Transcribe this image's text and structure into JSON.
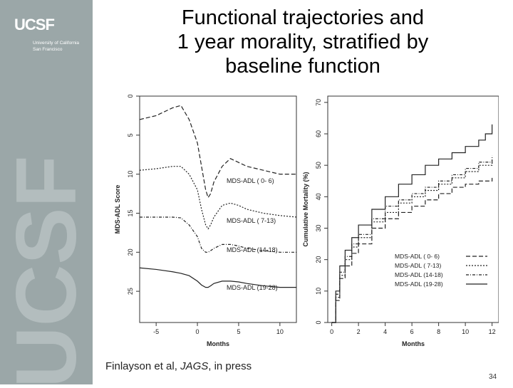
{
  "sidebar": {
    "logo": "UCSF",
    "subtitle_line1": "University of California",
    "subtitle_line2": "San Francisco",
    "watermark": "UCSF"
  },
  "slide": {
    "title_line1": "Functional trajectories and",
    "title_line2": "1 year morality, stratified by",
    "title_line3": "baseline function",
    "citation_prefix": "Finlayson et al, ",
    "citation_journal": "JAGS",
    "citation_suffix": ", in press",
    "page_number": "34"
  },
  "chart_data": [
    {
      "type": "line",
      "xlabel": "Months",
      "ylabel": "MDS-ADL Score",
      "xlim": [
        -7,
        12
      ],
      "ylim": [
        0,
        29
      ],
      "y_inverted": true,
      "x_ticks": [
        -5,
        0,
        5,
        10
      ],
      "y_ticks": [
        0,
        5,
        10,
        15,
        20,
        25
      ],
      "series": [
        {
          "name": "MDS-ADL ( 0- 6)",
          "dash": "6,3",
          "x": [
            -7,
            -5,
            -3,
            -2,
            -1,
            0,
            0.5,
            1,
            1.3,
            1.6,
            2,
            3,
            4,
            5,
            6,
            8,
            10,
            12
          ],
          "y": [
            3,
            2.5,
            1.5,
            1.2,
            3,
            6,
            9,
            12,
            13,
            12.5,
            11,
            9,
            8,
            8.5,
            9,
            9.5,
            10,
            10
          ]
        },
        {
          "name": "MDS-ADL ( 7-13)",
          "dash": "2,2",
          "x": [
            -7,
            -5,
            -3,
            -2,
            -1,
            0,
            0.5,
            1,
            1.3,
            1.6,
            2,
            3,
            4,
            5,
            6,
            8,
            10,
            12
          ],
          "y": [
            9.5,
            9.3,
            9,
            9,
            10,
            12,
            14.5,
            16.5,
            17,
            16.5,
            15.5,
            14,
            13.7,
            14,
            14.5,
            15,
            15.3,
            15.5
          ]
        },
        {
          "name": "MDS-ADL (14-18)",
          "dash": "4,2,1,2",
          "x": [
            -7,
            -5,
            -3,
            -2,
            -1,
            0,
            0.5,
            1,
            1.3,
            1.6,
            2,
            3,
            4,
            5,
            6,
            8,
            10,
            12
          ],
          "y": [
            15.5,
            15.5,
            15.5,
            15.6,
            16.5,
            18,
            19.5,
            20,
            20,
            19.8,
            19.5,
            19,
            19,
            19.2,
            19.5,
            19.8,
            20,
            20
          ]
        },
        {
          "name": "MDS-ADL (19-28)",
          "dash": "",
          "x": [
            -7,
            -5,
            -3,
            -2,
            -1,
            0,
            0.5,
            1,
            1.3,
            1.6,
            2,
            3,
            4,
            5,
            6,
            8,
            10,
            12
          ],
          "y": [
            22,
            22.2,
            22.5,
            22.7,
            23,
            23.7,
            24.2,
            24.5,
            24.5,
            24.3,
            24,
            23.7,
            23.7,
            23.8,
            24,
            24.3,
            24.5,
            24.5
          ]
        }
      ],
      "annotations": [
        "MDS-ADL ( 0- 6)",
        "MDS-ADL ( 7-13)",
        "MDS-ADL (14-18)",
        "MDS-ADL (19-28)"
      ]
    },
    {
      "type": "line",
      "xlabel": "Months",
      "ylabel": "Cumulative Mortality (%)",
      "xlim": [
        -0.3,
        12.5
      ],
      "ylim": [
        0,
        72
      ],
      "x_ticks": [
        0,
        2,
        4,
        6,
        8,
        10,
        12
      ],
      "y_ticks": [
        0,
        10,
        20,
        30,
        40,
        50,
        60,
        70
      ],
      "legend_position": "bottom-right",
      "legend": [
        "MDS-ADL ( 0- 6)",
        "MDS-ADL ( 7-13)",
        "MDS-ADL (14-18)",
        "MDS-ADL (19-28)"
      ],
      "series": [
        {
          "name": "MDS-ADL ( 0- 6)",
          "dash": "6,3",
          "x": [
            0,
            0.3,
            0.6,
            1,
            1.5,
            2,
            3,
            4,
            5,
            6,
            7,
            8,
            9,
            10,
            11,
            12
          ],
          "y": [
            0,
            7,
            14,
            18,
            22,
            25,
            30,
            33,
            35,
            37,
            39,
            41,
            43,
            44,
            45,
            46
          ]
        },
        {
          "name": "MDS-ADL ( 7-13)",
          "dash": "2,2",
          "x": [
            0,
            0.3,
            0.6,
            1,
            1.5,
            2,
            3,
            4,
            5,
            6,
            7,
            8,
            9,
            10,
            11,
            12
          ],
          "y": [
            0,
            8,
            15,
            20,
            24,
            27,
            32,
            35,
            38,
            40,
            42,
            44,
            46,
            48,
            50,
            51
          ]
        },
        {
          "name": "MDS-ADL (14-18)",
          "dash": "4,2,1,2",
          "x": [
            0,
            0.3,
            0.6,
            1,
            1.5,
            2,
            3,
            4,
            5,
            6,
            7,
            8,
            9,
            10,
            11,
            12
          ],
          "y": [
            0,
            9,
            16,
            21,
            25,
            28,
            33,
            37,
            39,
            41,
            43,
            45,
            47,
            49,
            51,
            53
          ]
        },
        {
          "name": "MDS-ADL (19-28)",
          "dash": "",
          "x": [
            0,
            0.3,
            0.6,
            1,
            1.5,
            2,
            3,
            4,
            5,
            6,
            7,
            8,
            9,
            10,
            11,
            11.5,
            12
          ],
          "y": [
            0,
            10,
            18,
            23,
            27,
            31,
            36,
            40,
            44,
            47,
            50,
            52,
            54,
            56,
            58,
            60,
            63
          ]
        }
      ]
    }
  ]
}
